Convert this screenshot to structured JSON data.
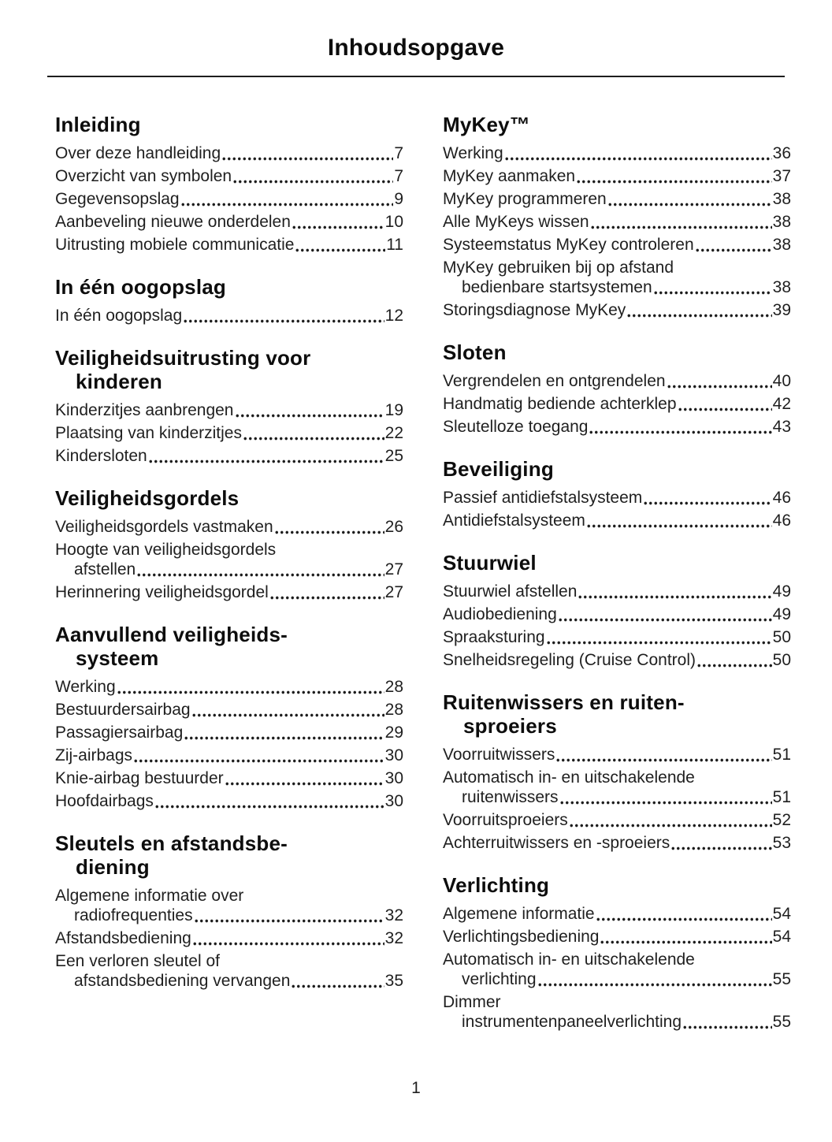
{
  "header": {
    "title": "Inhoudsopgave"
  },
  "footer": {
    "page_number": "1"
  },
  "columns": {
    "left": [
      {
        "heading": "Inleiding",
        "entries": [
          {
            "text": "Over deze handleiding",
            "page": "7"
          },
          {
            "text": "Overzicht van symbolen",
            "page": "7"
          },
          {
            "text": "Gegevensopslag",
            "page": "9"
          },
          {
            "text": "Aanbeveling nieuwe onderdelen",
            "page": "10"
          },
          {
            "text": "Uitrusting mobiele communicatie",
            "page": "11"
          }
        ]
      },
      {
        "heading": "In één oogopslag",
        "entries": [
          {
            "text": "In één oogopslag",
            "page": "12"
          }
        ]
      },
      {
        "heading": "Veiligheidsuitrusting voor\nkinderen",
        "entries": [
          {
            "text": "Kinderzitjes aanbrengen",
            "page": "19"
          },
          {
            "text": "Plaatsing van kinderzitjes",
            "page": "22"
          },
          {
            "text": "Kindersloten",
            "page": "25"
          }
        ]
      },
      {
        "heading": "Veiligheidsgordels",
        "entries": [
          {
            "text": "Veiligheidsgordels vastmaken",
            "page": "26"
          },
          {
            "pre": "Hoogte van veiligheidsgordels",
            "text": "afstellen",
            "page": "27"
          },
          {
            "text": "Herinnering veiligheidsgordel",
            "page": "27"
          }
        ]
      },
      {
        "heading": "Aanvullend veiligheids-\nsysteem",
        "entries": [
          {
            "text": "Werking",
            "page": "28"
          },
          {
            "text": "Bestuurdersairbag",
            "page": "28"
          },
          {
            "text": "Passagiersairbag",
            "page": "29"
          },
          {
            "text": "Zij-airbags",
            "page": "30"
          },
          {
            "text": "Knie-airbag bestuurder",
            "page": "30"
          },
          {
            "text": "Hoofdairbags",
            "page": "30"
          }
        ]
      },
      {
        "heading": "Sleutels en afstandsbe-\ndiening",
        "entries": [
          {
            "pre": "Algemene informatie over",
            "text": "radiofrequenties",
            "page": "32"
          },
          {
            "text": "Afstandsbediening",
            "page": "32"
          },
          {
            "pre": "Een verloren sleutel of",
            "text": "afstandsbediening vervangen",
            "page": "35"
          }
        ]
      }
    ],
    "right": [
      {
        "heading": "MyKey™",
        "entries": [
          {
            "text": "Werking",
            "page": "36"
          },
          {
            "text": "MyKey aanmaken",
            "page": "37"
          },
          {
            "text": "MyKey programmeren",
            "page": "38"
          },
          {
            "text": "Alle MyKeys wissen",
            "page": "38"
          },
          {
            "text": "Systeemstatus MyKey controleren",
            "page": "38"
          },
          {
            "pre": "MyKey gebruiken bij op afstand",
            "text": "bedienbare startsystemen",
            "page": "38"
          },
          {
            "text": "Storingsdiagnose MyKey",
            "page": "39"
          }
        ]
      },
      {
        "heading": "Sloten",
        "entries": [
          {
            "text": "Vergrendelen en ontgrendelen",
            "page": "40"
          },
          {
            "text": "Handmatig bediende achterklep",
            "page": "42"
          },
          {
            "text": "Sleutelloze toegang",
            "page": "43"
          }
        ]
      },
      {
        "heading": "Beveiliging",
        "entries": [
          {
            "text": "Passief antidiefstalsysteem",
            "page": "46"
          },
          {
            "text": "Antidiefstalsysteem",
            "page": "46"
          }
        ]
      },
      {
        "heading": "Stuurwiel",
        "entries": [
          {
            "text": "Stuurwiel afstellen",
            "page": "49"
          },
          {
            "text": "Audiobediening",
            "page": "49"
          },
          {
            "text": "Spraaksturing",
            "page": "50"
          },
          {
            "text": "Snelheidsregeling (Cruise Control)",
            "page": "50"
          }
        ]
      },
      {
        "heading": "Ruitenwissers en ruiten-\nsproeiers",
        "entries": [
          {
            "text": "Voorruitwissers",
            "page": "51"
          },
          {
            "pre": "Automatisch in- en uitschakelende",
            "text": "ruitenwissers",
            "page": "51"
          },
          {
            "text": "Voorruitsproeiers",
            "page": "52"
          },
          {
            "text": "Achterruitwissers en -sproeiers",
            "page": "53"
          }
        ]
      },
      {
        "heading": "Verlichting",
        "entries": [
          {
            "text": "Algemene informatie",
            "page": "54"
          },
          {
            "text": "Verlichtingsbediening",
            "page": "54"
          },
          {
            "pre": "Automatisch in- en uitschakelende",
            "text": "verlichting",
            "page": "55"
          },
          {
            "pre": "Dimmer",
            "text": "instrumentenpaneelverlichting",
            "page": "55"
          }
        ]
      }
    ]
  }
}
